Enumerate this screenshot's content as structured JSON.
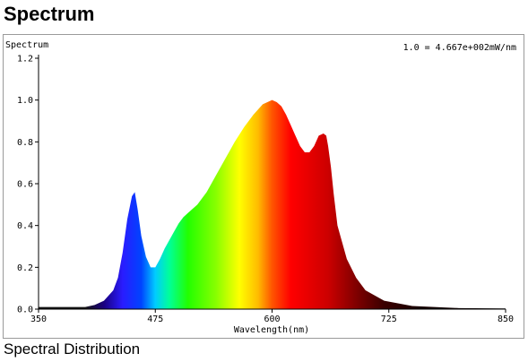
{
  "page": {
    "title": "Spectrum",
    "caption": "Spectral Distribution"
  },
  "chart_data": {
    "type": "area",
    "ylabel": "Spectrum",
    "xlabel": "Wavelength(nm)",
    "annotation": "1.0 = 4.667e+002mW/nm",
    "xlim": [
      350,
      850
    ],
    "ylim": [
      0,
      1.2
    ],
    "x_ticks": [
      350,
      475,
      600,
      725,
      850
    ],
    "y_ticks": [
      0.0,
      0.2,
      0.4,
      0.6,
      0.8,
      1.0,
      1.2
    ],
    "y_tick_labels": [
      "0.0",
      "0.2",
      "0.4",
      "0.6",
      "0.8",
      "1.0",
      "1.2"
    ],
    "grid": false,
    "x": [
      350,
      380,
      400,
      410,
      420,
      430,
      435,
      440,
      445,
      450,
      453,
      456,
      460,
      465,
      470,
      475,
      480,
      485,
      490,
      495,
      500,
      505,
      510,
      520,
      530,
      540,
      550,
      560,
      570,
      580,
      590,
      600,
      605,
      610,
      615,
      620,
      625,
      630,
      635,
      640,
      645,
      650,
      655,
      658,
      660,
      663,
      666,
      670,
      680,
      690,
      700,
      720,
      750,
      800,
      850
    ],
    "y": [
      0.01,
      0.01,
      0.01,
      0.02,
      0.04,
      0.09,
      0.15,
      0.27,
      0.43,
      0.54,
      0.56,
      0.48,
      0.35,
      0.25,
      0.2,
      0.2,
      0.24,
      0.29,
      0.33,
      0.37,
      0.41,
      0.44,
      0.46,
      0.5,
      0.56,
      0.64,
      0.72,
      0.8,
      0.87,
      0.93,
      0.98,
      1.0,
      0.99,
      0.97,
      0.93,
      0.88,
      0.83,
      0.78,
      0.75,
      0.75,
      0.78,
      0.83,
      0.84,
      0.83,
      0.78,
      0.68,
      0.55,
      0.4,
      0.24,
      0.15,
      0.09,
      0.04,
      0.015,
      0.005,
      0.003
    ]
  }
}
